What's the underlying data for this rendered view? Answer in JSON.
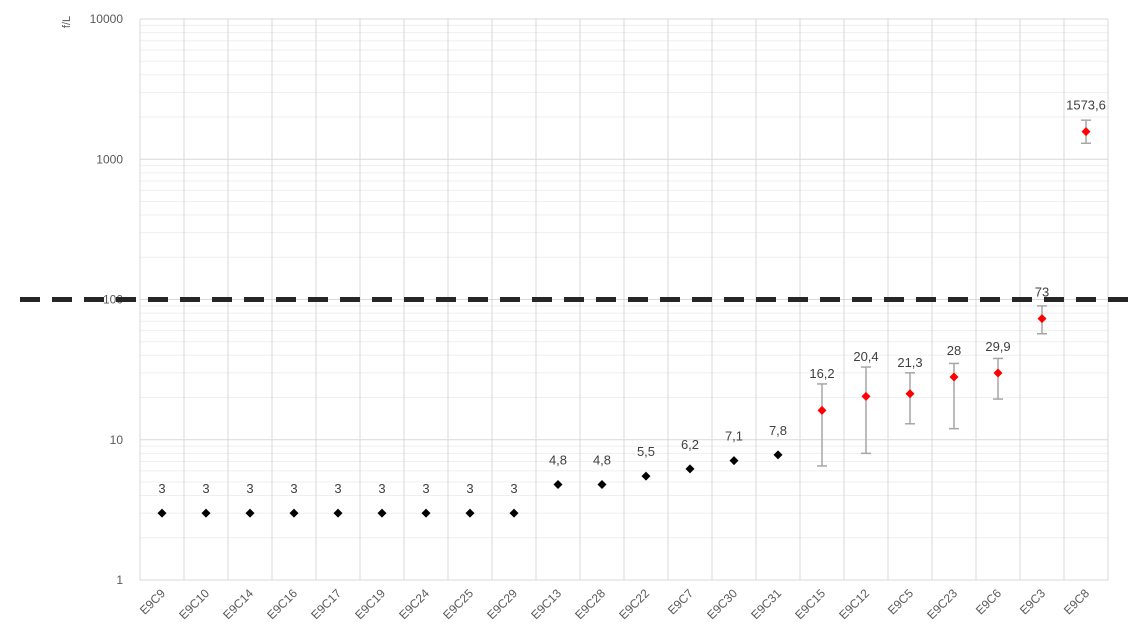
{
  "chart_data": {
    "type": "scatter",
    "scale": "log",
    "ylabel": "f/L",
    "ylim": [
      1,
      10000
    ],
    "yticks": [
      1,
      10,
      100,
      1000,
      10000
    ],
    "ytick_labels": [
      "1",
      "10",
      "100",
      "1000",
      "10000"
    ],
    "grid": true,
    "threshold": 100,
    "categories": [
      "E9C9",
      "E9C10",
      "E9C14",
      "E9C16",
      "E9C17",
      "E9C19",
      "E9C24",
      "E9C25",
      "E9C29",
      "E9C13",
      "E9C28",
      "E9C22",
      "E9C7",
      "E9C30",
      "E9C31",
      "E9C15",
      "E9C12",
      "E9C5",
      "E9C23",
      "E9C6",
      "E9C3",
      "E9C8"
    ],
    "values": [
      3,
      3,
      3,
      3,
      3,
      3,
      3,
      3,
      3,
      4.8,
      4.8,
      5.5,
      6.2,
      7.1,
      7.8,
      16.2,
      20.4,
      21.3,
      28,
      29.9,
      73,
      1573.6
    ],
    "labels": [
      "3",
      "3",
      "3",
      "3",
      "3",
      "3",
      "3",
      "3",
      "3",
      "4,8",
      "4,8",
      "5,5",
      "6,2",
      "7,1",
      "7,8",
      "16,2",
      "20,4",
      "21,3",
      "28",
      "29,9",
      "73",
      "1573,6"
    ],
    "error_low": [
      null,
      null,
      null,
      null,
      null,
      null,
      null,
      null,
      null,
      null,
      null,
      null,
      null,
      null,
      null,
      6.5,
      8,
      13,
      12,
      19.5,
      57,
      1300
    ],
    "error_high": [
      null,
      null,
      null,
      null,
      null,
      null,
      null,
      null,
      null,
      null,
      null,
      null,
      null,
      null,
      null,
      25,
      33,
      30,
      35,
      38,
      90,
      1900
    ],
    "colors": {
      "below_threshold": "#000000",
      "above_threshold": "#ff0000",
      "error_bar": "#a6a6a6",
      "threshold_line": "#262626",
      "grid_major": "#d9d9d9",
      "grid_minor": "#efefef"
    }
  }
}
